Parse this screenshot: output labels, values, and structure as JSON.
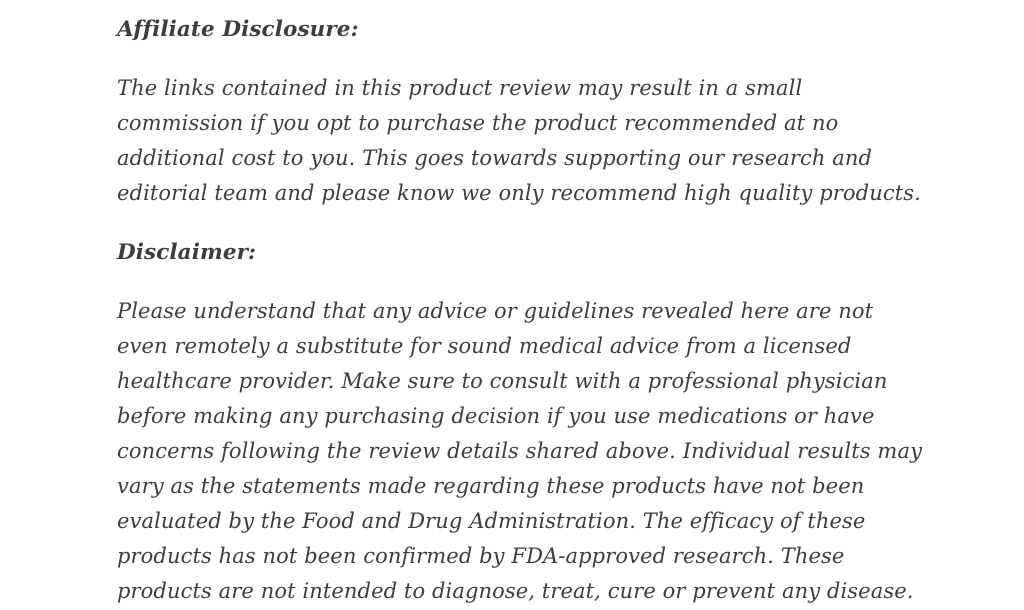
{
  "page": {
    "background_color": "#ffffff",
    "text_color": "#3d3d3d"
  },
  "content": {
    "sections": [
      {
        "heading": "Affiliate Disclosure:",
        "paragraph": "The links contained in this product review may result in a small commission if you opt to purchase the product recommended at no additional cost to you. This goes towards supporting our research and editorial team and please know we only recommend high quality products."
      },
      {
        "heading": "Disclaimer:",
        "paragraph": "Please understand that any advice or guidelines revealed here are not even remotely a substitute for sound medical advice from a licensed healthcare provider. Make sure to consult with a professional physician before making any purchasing decision if you use medications or have concerns following the review details shared above. Individual results may vary as the statements made regarding these products have not been evaluated by the Food and Drug Administration. The efficacy of these products has not been confirmed by FDA-approved research. These products are not intended to diagnose, treat, cure or prevent any disease."
      }
    ]
  }
}
